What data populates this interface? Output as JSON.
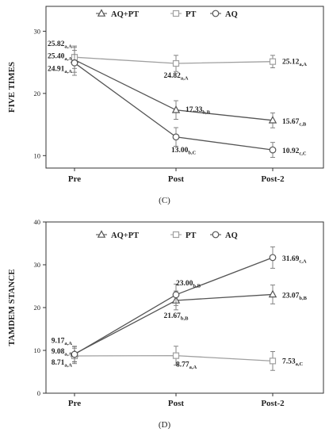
{
  "chart_data": [
    {
      "type": "line",
      "ylabel": "FIVE TIMES",
      "caption": "(C)",
      "categories": [
        "Pre",
        "Post",
        "Post-2"
      ],
      "yticks": [
        10,
        20,
        30
      ],
      "ylim": [
        8,
        34
      ],
      "grid": false,
      "legend_position": "top",
      "series": [
        {
          "name": "AQ+PT",
          "marker": "triangle",
          "color": "#555555",
          "values": [
            25.4,
            17.33,
            15.67
          ],
          "errors": [
            2.0,
            1.5,
            1.2
          ],
          "labels": [
            {
              "value": "25.40",
              "sub": "a,A"
            },
            {
              "value": "17.33",
              "sub": "b,B"
            },
            {
              "value": "15.67",
              "sub": "c,B"
            }
          ]
        },
        {
          "name": "PT",
          "marker": "square",
          "color": "#a0a0a0",
          "values": [
            25.82,
            24.82,
            25.12
          ],
          "errors": [
            1.8,
            1.3,
            1.0
          ],
          "labels": [
            {
              "value": "25.82",
              "sub": "a,A"
            },
            {
              "value": "24.82",
              "sub": "a,A"
            },
            {
              "value": "25.12",
              "sub": "a,A"
            }
          ]
        },
        {
          "name": "AQ",
          "marker": "circle",
          "color": "#555555",
          "values": [
            24.91,
            13.0,
            10.92
          ],
          "errors": [
            2.0,
            1.5,
            1.2
          ],
          "labels": [
            {
              "value": "24.91",
              "sub": "a,A"
            },
            {
              "value": "13.00",
              "sub": "b,C"
            },
            {
              "value": "10.92",
              "sub": "c,C"
            }
          ]
        }
      ]
    },
    {
      "type": "line",
      "ylabel": "TAMDEM STANCE",
      "caption": "(D)",
      "categories": [
        "Pre",
        "Post",
        "Post-2"
      ],
      "yticks": [
        0,
        10,
        20,
        30,
        40
      ],
      "ylim": [
        0,
        40
      ],
      "grid": false,
      "legend_position": "top",
      "series": [
        {
          "name": "AQ+PT",
          "marker": "triangle",
          "color": "#555555",
          "values": [
            9.17,
            21.67,
            23.07
          ],
          "errors": [
            1.8,
            2.2,
            2.2
          ],
          "labels": [
            {
              "value": "9.17",
              "sub": "a,A"
            },
            {
              "value": "21.67",
              "sub": "b,B"
            },
            {
              "value": "23.07",
              "sub": "b,B"
            }
          ]
        },
        {
          "name": "PT",
          "marker": "square",
          "color": "#a0a0a0",
          "values": [
            8.71,
            8.77,
            7.53
          ],
          "errors": [
            1.8,
            2.2,
            2.2
          ],
          "labels": [
            {
              "value": "8.71",
              "sub": "a,A"
            },
            {
              "value": "8.77",
              "sub": "a,A"
            },
            {
              "value": "7.53",
              "sub": "a,C"
            }
          ]
        },
        {
          "name": "AQ",
          "marker": "circle",
          "color": "#555555",
          "values": [
            9.08,
            23.0,
            31.69
          ],
          "errors": [
            1.8,
            2.5,
            2.5
          ],
          "labels": [
            {
              "value": "9.08",
              "sub": "a,A"
            },
            {
              "value": "23.00",
              "sub": "b,B"
            },
            {
              "value": "31.69",
              "sub": "c,A"
            }
          ]
        }
      ]
    }
  ]
}
